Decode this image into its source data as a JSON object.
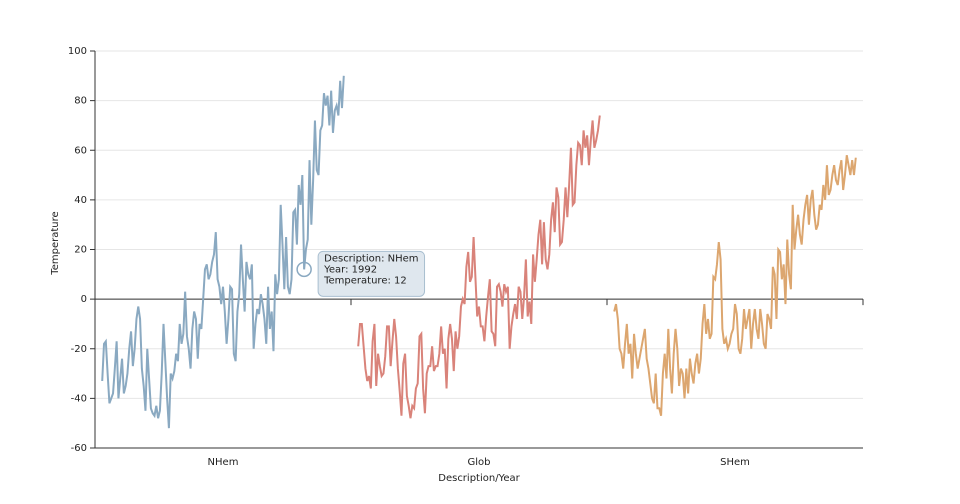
{
  "chart_data": {
    "type": "line",
    "x_label": "Description/Year",
    "y_label": "Temperature",
    "ylim": [
      -60,
      100
    ],
    "yticks": [
      -60,
      -40,
      -20,
      0,
      20,
      40,
      60,
      80,
      100
    ],
    "xlim": [
      1876,
      2018
    ],
    "grid": true,
    "x": [
      1880,
      1881,
      1882,
      1883,
      1884,
      1885,
      1886,
      1887,
      1888,
      1889,
      1890,
      1891,
      1892,
      1893,
      1894,
      1895,
      1896,
      1897,
      1898,
      1899,
      1900,
      1901,
      1902,
      1903,
      1904,
      1905,
      1906,
      1907,
      1908,
      1909,
      1910,
      1911,
      1912,
      1913,
      1914,
      1915,
      1916,
      1917,
      1918,
      1919,
      1920,
      1921,
      1922,
      1923,
      1924,
      1925,
      1926,
      1927,
      1928,
      1929,
      1930,
      1931,
      1932,
      1933,
      1934,
      1935,
      1936,
      1937,
      1938,
      1939,
      1940,
      1941,
      1942,
      1943,
      1944,
      1945,
      1946,
      1947,
      1948,
      1949,
      1950,
      1951,
      1952,
      1953,
      1954,
      1955,
      1956,
      1957,
      1958,
      1959,
      1960,
      1961,
      1962,
      1963,
      1964,
      1965,
      1966,
      1967,
      1968,
      1969,
      1970,
      1971,
      1972,
      1973,
      1974,
      1975,
      1976,
      1977,
      1978,
      1979,
      1980,
      1981,
      1982,
      1983,
      1984,
      1985,
      1986,
      1987,
      1988,
      1989,
      1990,
      1991,
      1992,
      1993,
      1994,
      1995,
      1996,
      1997,
      1998,
      1999,
      2000,
      2001,
      2002,
      2003,
      2004,
      2005,
      2006,
      2007,
      2008,
      2009,
      2010,
      2011,
      2012,
      2013,
      2014
    ],
    "series": [
      {
        "name": "NHem",
        "color": "#8aa9c1",
        "values": [
          -33,
          -18,
          -17,
          -30,
          -42,
          -40,
          -38,
          -28,
          -17,
          -40,
          -32,
          -24,
          -38,
          -35,
          -30,
          -20,
          -13,
          -27,
          -20,
          -8,
          -3,
          -8,
          -28,
          -35,
          -45,
          -20,
          -32,
          -44,
          -46,
          -47,
          -43,
          -48,
          -45,
          -30,
          -10,
          -25,
          -40,
          -52,
          -30,
          -32,
          -29,
          -22,
          -25,
          -10,
          -18,
          -14,
          3,
          -15,
          -20,
          -28,
          -12,
          -5,
          -8,
          -24,
          -10,
          -12,
          0,
          12,
          14,
          8,
          10,
          15,
          18,
          27,
          8,
          5,
          -2,
          5,
          -5,
          -18,
          -8,
          5,
          4,
          -22,
          -25,
          -5,
          2,
          22,
          8,
          -5,
          15,
          10,
          8,
          14,
          -20,
          -10,
          -4,
          -6,
          2,
          -2,
          -8,
          -18,
          5,
          -12,
          -5,
          -21,
          10,
          2,
          8,
          38,
          22,
          4,
          25,
          5,
          2,
          8,
          35,
          36,
          22,
          46,
          38,
          50,
          12,
          20,
          24,
          56,
          30,
          48,
          72,
          52,
          50,
          68,
          70,
          83,
          78,
          82,
          70,
          84,
          67,
          76,
          78,
          74,
          88,
          77,
          90
        ]
      },
      {
        "name": "Glob",
        "color": "#d9837a",
        "values": [
          -19,
          -10,
          -10,
          -19,
          -28,
          -33,
          -31,
          -36,
          -17,
          -10,
          -35,
          -22,
          -27,
          -31,
          -30,
          -23,
          -11,
          -11,
          -27,
          -17,
          -8,
          -15,
          -28,
          -37,
          -47,
          -26,
          -22,
          -39,
          -43,
          -48,
          -43,
          -44,
          -36,
          -34,
          -15,
          -14,
          -36,
          -46,
          -30,
          -27,
          -27,
          -19,
          -29,
          -27,
          -27,
          -22,
          -11,
          -22,
          -20,
          -36,
          -16,
          -10,
          -16,
          -29,
          -13,
          -20,
          -15,
          -3,
          0,
          -2,
          13,
          19,
          7,
          9,
          25,
          9,
          -7,
          -3,
          -11,
          -11,
          -17,
          -7,
          1,
          8,
          -13,
          -14,
          -19,
          5,
          6,
          3,
          -3,
          6,
          3,
          5,
          -20,
          -11,
          -6,
          -2,
          -8,
          5,
          3,
          -8,
          1,
          16,
          -7,
          -1,
          -10,
          18,
          7,
          16,
          26,
          32,
          14,
          31,
          16,
          12,
          18,
          32,
          39,
          27,
          45,
          41,
          22,
          23,
          32,
          45,
          33,
          46,
          61,
          38,
          39,
          54,
          63,
          62,
          54,
          68,
          61,
          66,
          54,
          64,
          72,
          61,
          64,
          68,
          74
        ]
      },
      {
        "name": "SHem",
        "color": "#dca66f",
        "values": [
          -5,
          -2,
          -8,
          -20,
          -22,
          -28,
          -18,
          -10,
          -22,
          -18,
          -32,
          -14,
          -22,
          -28,
          -24,
          -20,
          -16,
          -12,
          -24,
          -28,
          -34,
          -40,
          -42,
          -30,
          -44,
          -44,
          -47,
          -30,
          -22,
          -32,
          -12,
          -28,
          -38,
          -22,
          -12,
          -20,
          -35,
          -28,
          -30,
          -40,
          -28,
          -38,
          -24,
          -30,
          -34,
          -26,
          -22,
          -30,
          -24,
          -10,
          -2,
          -14,
          -8,
          -16,
          -14,
          9,
          8,
          14,
          23,
          16,
          -12,
          -18,
          -16,
          -20,
          -18,
          -14,
          -12,
          -2,
          -6,
          -20,
          -22,
          -16,
          -4,
          -12,
          -8,
          -4,
          -20,
          -10,
          -4,
          -12,
          -16,
          -4,
          -10,
          -18,
          -20,
          -6,
          -8,
          -12,
          13,
          10,
          -8,
          20,
          19,
          8,
          14,
          -2,
          24,
          10,
          4,
          38,
          20,
          28,
          34,
          26,
          22,
          32,
          38,
          42,
          30,
          40,
          44,
          34,
          28,
          30,
          38,
          36,
          46,
          40,
          54,
          42,
          44,
          50,
          54,
          48,
          46,
          52,
          56,
          44,
          50,
          58,
          54,
          50,
          56,
          50,
          57
        ]
      }
    ],
    "tooltip": {
      "x": 1992,
      "lines": [
        "Description: NHem",
        "Year: 1992",
        "Temperature: 12"
      ]
    }
  }
}
